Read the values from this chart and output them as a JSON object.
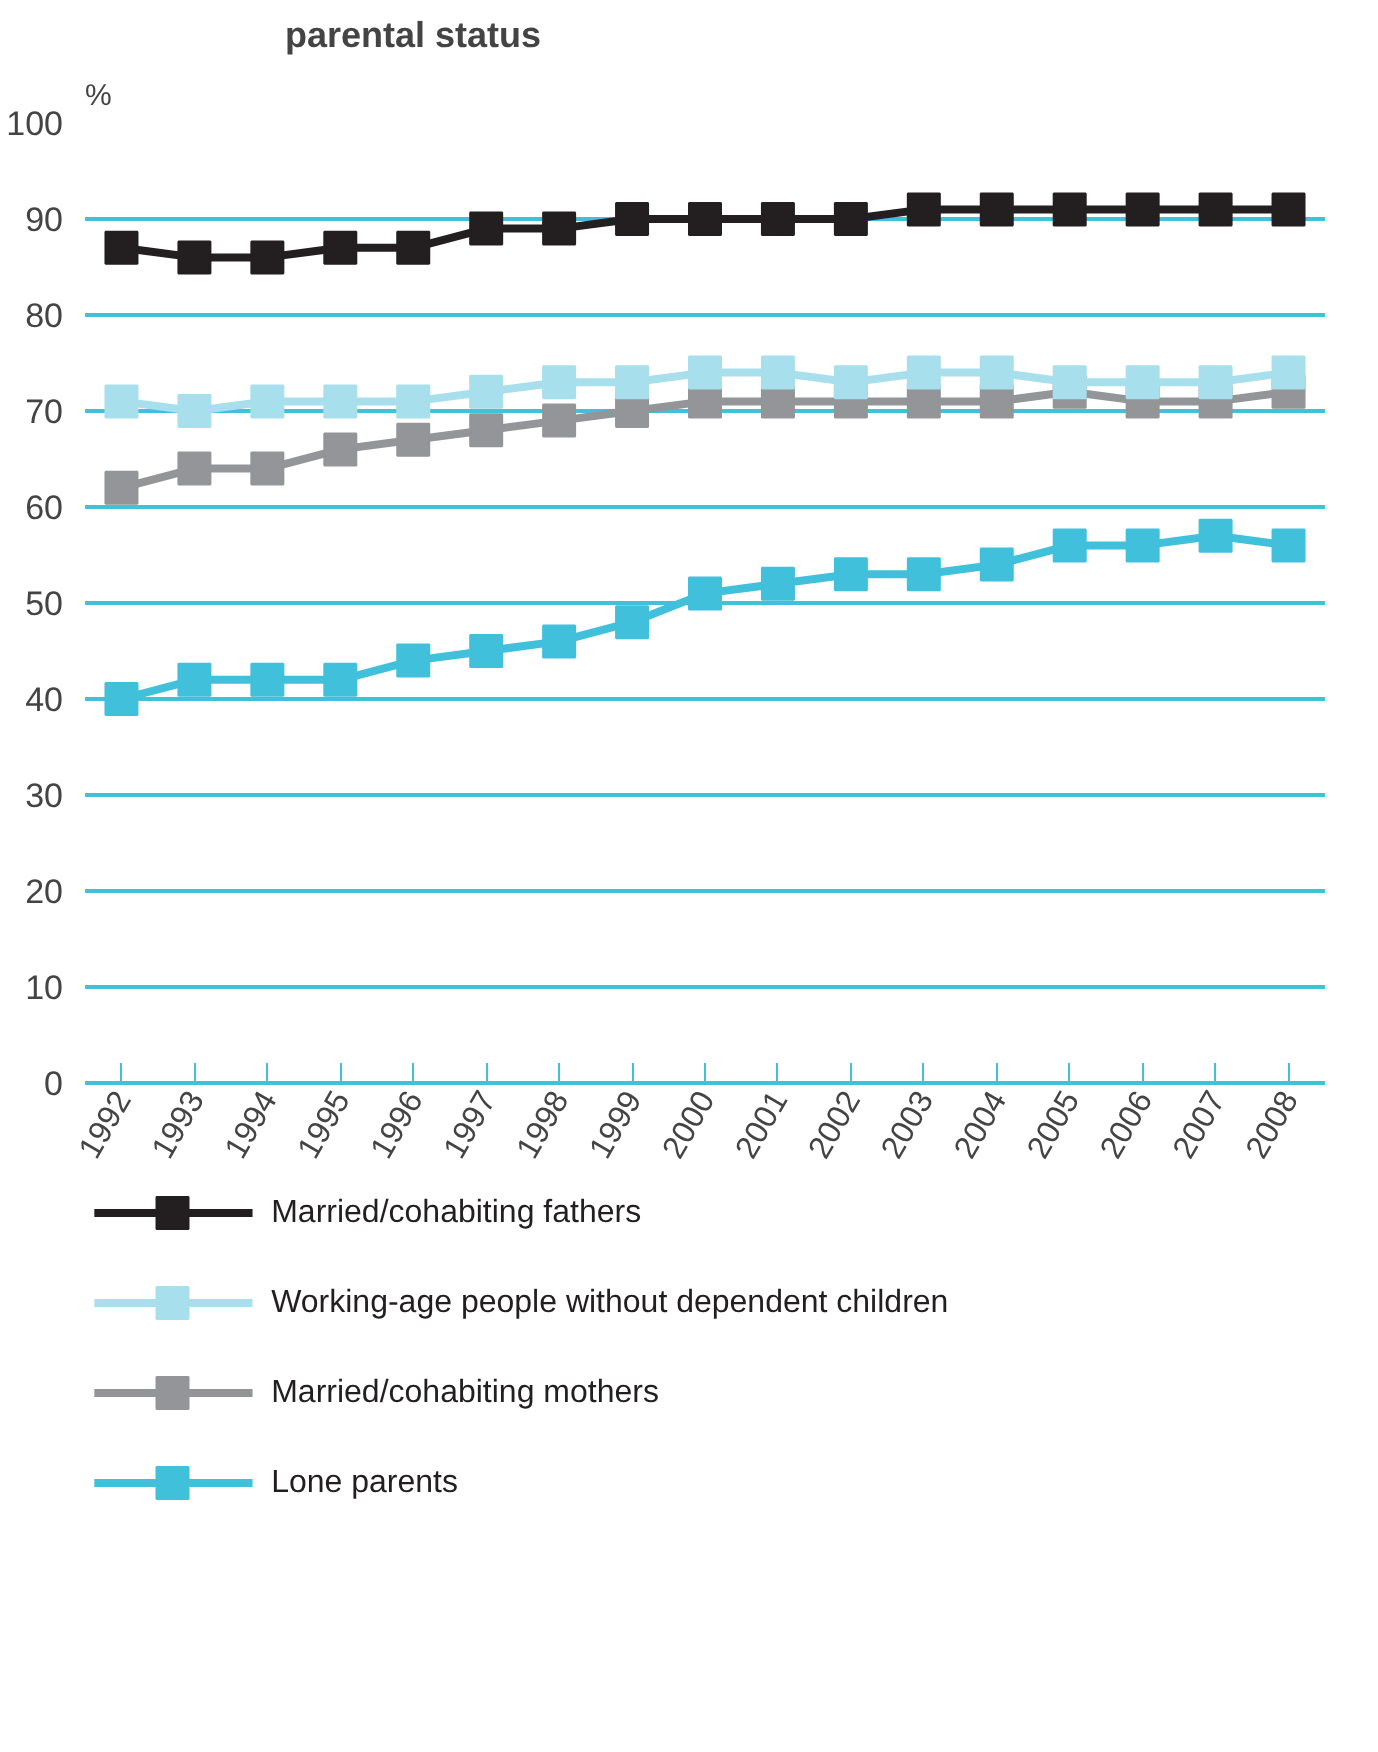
{
  "chart_data": {
    "type": "line",
    "title": "parental status",
    "ylabel": "%",
    "categories": [
      "1992",
      "1993",
      "1994",
      "1995",
      "1996",
      "1997",
      "1998",
      "1999",
      "2000",
      "2001",
      "2002",
      "2003",
      "2004",
      "2005",
      "2006",
      "2007",
      "2008"
    ],
    "ylim": [
      0,
      100
    ],
    "yticks": [
      0,
      10,
      20,
      30,
      40,
      50,
      60,
      70,
      80,
      90,
      100
    ],
    "grid": "y",
    "legend": "bottom",
    "marker": "square",
    "line_style": "solid",
    "series": [
      {
        "name": "Married/cohabiting fathers",
        "color": "#231f20",
        "values": [
          87,
          86,
          86,
          87,
          87,
          89,
          89,
          90,
          90,
          90,
          90,
          91,
          91,
          91,
          91,
          91,
          91
        ]
      },
      {
        "name": "Working-age people without dependent children",
        "color": "#a8dfec",
        "values": [
          71,
          70,
          71,
          71,
          71,
          72,
          73,
          73,
          74,
          74,
          73,
          74,
          74,
          73,
          73,
          73,
          74
        ]
      },
      {
        "name": "Married/cohabiting mothers",
        "color": "#939598",
        "values": [
          62,
          64,
          64,
          66,
          67,
          68,
          69,
          70,
          71,
          71,
          71,
          71,
          71,
          72,
          71,
          71,
          72
        ]
      },
      {
        "name": "Lone parents",
        "color": "#40c0da",
        "values": [
          40,
          42,
          42,
          42,
          44,
          45,
          46,
          48,
          51,
          52,
          53,
          53,
          54,
          56,
          56,
          57,
          56
        ]
      }
    ]
  }
}
